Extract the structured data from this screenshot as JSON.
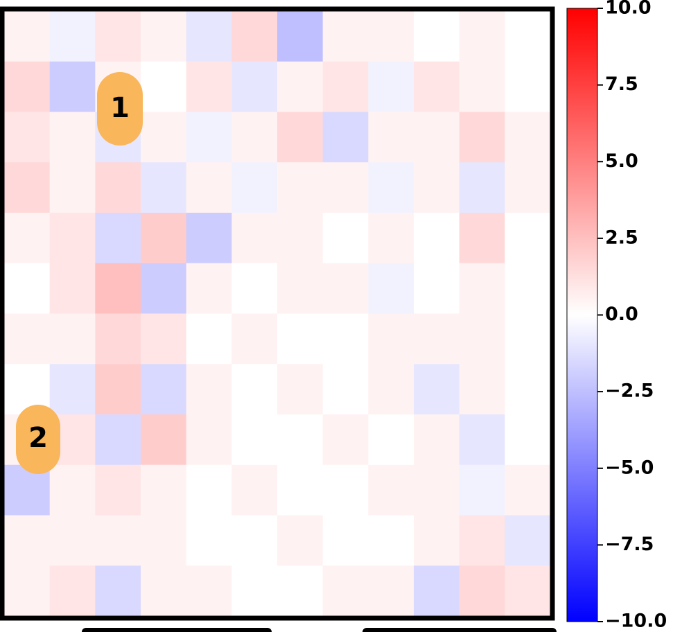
{
  "chart_data": {
    "type": "heatmap",
    "colormap": [
      "#0000ff",
      "#ffffff",
      "#ff0000"
    ],
    "clim": [
      -10,
      10
    ],
    "values": [
      [
        0.5,
        -0.5,
        1.0,
        0.5,
        -1.0,
        1.5,
        -2.5,
        0.5,
        0.5,
        0.0,
        0.5,
        0.0
      ],
      [
        1.5,
        -2.0,
        0.5,
        0.0,
        1.0,
        -1.0,
        0.5,
        1.0,
        -0.5,
        1.0,
        0.5,
        0.0
      ],
      [
        1.0,
        0.5,
        -1.0,
        0.5,
        -0.5,
        0.5,
        1.5,
        -1.5,
        0.5,
        0.5,
        1.5,
        0.5
      ],
      [
        1.5,
        0.5,
        1.5,
        -1.0,
        0.5,
        -0.5,
        0.5,
        0.5,
        -0.5,
        0.5,
        -1.0,
        0.5
      ],
      [
        0.5,
        1.0,
        -1.5,
        2.0,
        -2.0,
        0.5,
        0.5,
        0.0,
        0.5,
        0.0,
        1.5,
        0.0
      ],
      [
        0.0,
        1.0,
        2.5,
        -2.0,
        0.5,
        0.0,
        0.5,
        0.5,
        -0.5,
        0.0,
        0.5,
        0.0
      ],
      [
        0.5,
        0.5,
        1.5,
        1.0,
        0.0,
        0.5,
        0.0,
        0.0,
        0.5,
        0.5,
        0.5,
        0.0
      ],
      [
        0.0,
        -1.0,
        2.0,
        -1.5,
        0.5,
        0.0,
        0.5,
        0.0,
        0.5,
        -1.0,
        0.5,
        0.0
      ],
      [
        0.5,
        1.0,
        -1.5,
        2.0,
        0.5,
        0.0,
        0.0,
        0.5,
        0.0,
        0.5,
        -1.0,
        0.0
      ],
      [
        -2.0,
        0.5,
        1.0,
        0.5,
        0.0,
        0.5,
        0.0,
        0.0,
        0.5,
        0.5,
        -0.5,
        0.5
      ],
      [
        0.5,
        0.5,
        0.5,
        0.5,
        0.0,
        0.0,
        0.5,
        0.0,
        0.0,
        0.5,
        1.0,
        -1.0
      ],
      [
        0.5,
        1.0,
        -1.5,
        0.5,
        0.5,
        0.0,
        0.0,
        0.5,
        0.5,
        -1.5,
        1.5,
        1.0
      ]
    ],
    "colorbar_ticks": [
      {
        "value": 10,
        "label": "10.0"
      },
      7.5,
      {
        "value": 5,
        "label": "5.0"
      },
      2.5,
      {
        "value": 0,
        "label": "0.0"
      },
      {
        "value": -2.5,
        "label": "−2.5"
      },
      {
        "value": -5,
        "label": "−5.0"
      },
      {
        "value": -7.5,
        "label": "−7.5"
      },
      {
        "value": -10,
        "label": "−10.0"
      }
    ],
    "annotations": [
      "1",
      "2"
    ]
  }
}
